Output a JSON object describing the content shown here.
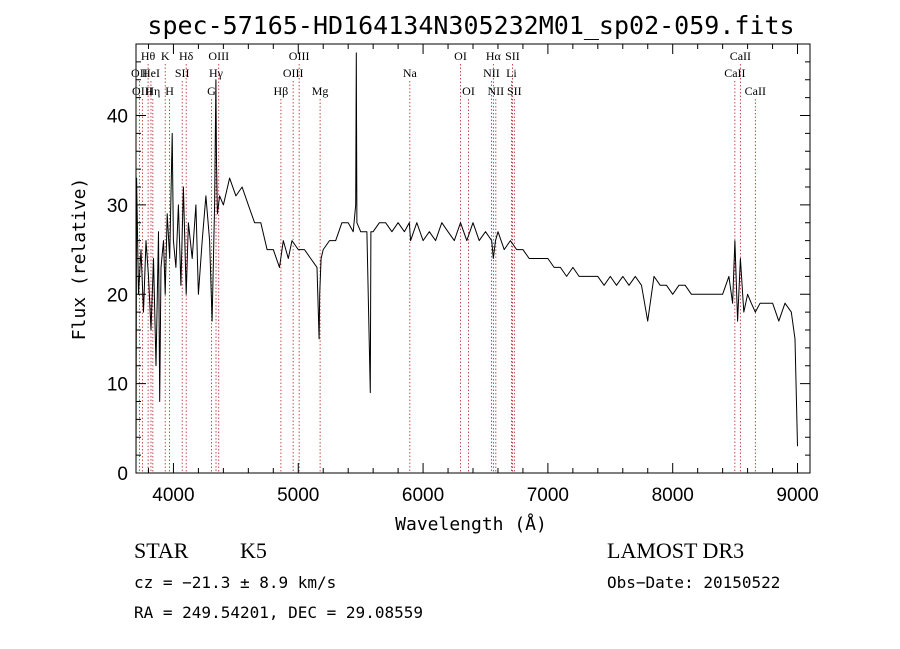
{
  "chart_data": {
    "type": "line",
    "title": "spec-57165-HD164134N305232M01_sp02-059.fits",
    "xlabel": "Wavelength (Å)",
    "ylabel": "Flux (relative)",
    "xlim": [
      3700,
      9100
    ],
    "ylim": [
      0,
      48
    ],
    "x_ticks": [
      4000,
      5000,
      6000,
      7000,
      8000,
      9000
    ],
    "y_ticks": [
      0,
      10,
      20,
      30,
      40
    ],
    "spectrum": {
      "x": [
        3700,
        3705,
        3720,
        3740,
        3760,
        3780,
        3800,
        3820,
        3840,
        3860,
        3880,
        3890,
        3900,
        3920,
        3934,
        3950,
        3970,
        3990,
        4000,
        4020,
        4040,
        4060,
        4080,
        4102,
        4120,
        4150,
        4180,
        4200,
        4230,
        4260,
        4290,
        4310,
        4330,
        4340,
        4345,
        4352,
        4370,
        4400,
        4450,
        4500,
        4550,
        4600,
        4650,
        4700,
        4750,
        4800,
        4850,
        4880,
        4920,
        4950,
        5000,
        5050,
        5100,
        5150,
        5167,
        5172,
        5183,
        5200,
        5250,
        5300,
        5350,
        5400,
        5440,
        5460,
        5465,
        5470,
        5500,
        5550,
        5577,
        5582,
        5600,
        5650,
        5700,
        5750,
        5800,
        5850,
        5890,
        5900,
        5950,
        6000,
        6050,
        6100,
        6150,
        6200,
        6250,
        6300,
        6350,
        6400,
        6450,
        6500,
        6550,
        6563,
        6580,
        6600,
        6650,
        6700,
        6750,
        6800,
        6850,
        6900,
        6950,
        7000,
        7050,
        7100,
        7150,
        7200,
        7250,
        7300,
        7350,
        7400,
        7450,
        7500,
        7550,
        7600,
        7650,
        7700,
        7750,
        7800,
        7850,
        7900,
        7950,
        8000,
        8050,
        8100,
        8150,
        8200,
        8250,
        8300,
        8350,
        8400,
        8450,
        8480,
        8498,
        8520,
        8542,
        8570,
        8600,
        8630,
        8662,
        8700,
        8750,
        8800,
        8850,
        8900,
        8950,
        8980,
        9000
      ],
      "y": [
        0,
        33,
        20,
        25,
        18,
        26,
        22,
        16,
        24,
        12,
        27,
        8,
        23,
        26,
        20,
        29,
        24,
        38,
        26,
        23,
        30,
        21,
        32,
        20,
        28,
        24,
        30,
        20,
        26,
        31,
        26,
        17,
        30,
        44,
        35,
        29,
        31,
        30,
        33,
        31,
        32,
        30,
        28,
        28,
        25,
        25,
        23,
        26,
        24,
        26,
        25,
        25,
        24,
        23,
        15,
        20,
        24,
        25,
        26,
        26,
        28,
        28,
        27,
        30,
        47,
        28,
        27,
        27,
        9,
        27,
        27,
        28,
        28,
        27,
        28,
        27,
        28,
        26,
        28,
        26,
        27,
        26,
        28,
        27,
        26,
        28,
        26,
        28,
        26,
        27,
        26,
        24,
        26,
        27,
        25,
        26,
        25,
        25,
        24,
        24,
        24,
        24,
        23,
        23,
        22,
        23,
        22,
        22,
        22,
        22,
        21,
        22,
        21,
        22,
        21,
        22,
        21,
        17,
        22,
        21,
        21,
        20,
        21,
        21,
        20,
        20,
        20,
        20,
        20,
        20,
        22,
        19,
        26,
        17,
        24,
        18,
        20,
        19,
        18,
        19,
        19,
        19,
        17,
        19,
        18,
        15,
        3
      ]
    },
    "spectral_lines": [
      {
        "name": "Hθ",
        "wavelength": 3797,
        "row": 0
      },
      {
        "name": "OII",
        "wavelength": 3727,
        "row": 1
      },
      {
        "name": "OIII",
        "wavelength": 3751,
        "row": 2
      },
      {
        "name": "HeI",
        "wavelength": 3820,
        "row": 1
      },
      {
        "name": "Hη",
        "wavelength": 3835,
        "row": 2
      },
      {
        "name": "K",
        "wavelength": 3934,
        "row": 0
      },
      {
        "name": "H",
        "wavelength": 3969,
        "row": 2
      },
      {
        "name": "SII",
        "wavelength": 4070,
        "row": 1
      },
      {
        "name": "Hδ",
        "wavelength": 4102,
        "row": 0
      },
      {
        "name": "Hγ",
        "wavelength": 4341,
        "row": 1
      },
      {
        "name": "G",
        "wavelength": 4305,
        "row": 2
      },
      {
        "name": "OIII",
        "wavelength": 4363,
        "row": 0
      },
      {
        "name": "Hβ",
        "wavelength": 4861,
        "row": 2
      },
      {
        "name": "OIII",
        "wavelength": 4959,
        "row": 1
      },
      {
        "name": "OIII",
        "wavelength": 5007,
        "row": 0
      },
      {
        "name": "Mg",
        "wavelength": 5175,
        "row": 2
      },
      {
        "name": "Na",
        "wavelength": 5894,
        "row": 1
      },
      {
        "name": "OI",
        "wavelength": 6300,
        "row": 0
      },
      {
        "name": "OI",
        "wavelength": 6364,
        "row": 2
      },
      {
        "name": "NII",
        "wavelength": 6548,
        "row": 1
      },
      {
        "name": "Hα",
        "wavelength": 6563,
        "row": 0
      },
      {
        "name": "NII",
        "wavelength": 6583,
        "row": 2
      },
      {
        "name": "Li",
        "wavelength": 6708,
        "row": 1
      },
      {
        "name": "SII",
        "wavelength": 6716,
        "row": 0
      },
      {
        "name": "SII",
        "wavelength": 6731,
        "row": 2
      },
      {
        "name": "CaII",
        "wavelength": 8498,
        "row": 1
      },
      {
        "name": "CaII",
        "wavelength": 8542,
        "row": 0
      },
      {
        "name": "CaII",
        "wavelength": 8662,
        "row": 2
      }
    ],
    "grid": false
  },
  "info": {
    "star_class": "STAR",
    "subclass": "K5",
    "survey": "LAMOST DR3",
    "cz": "cz = −21.3 ± 8.9 km/s",
    "obs_date": "Obs−Date: 20150522",
    "radec": "RA = 249.54201, DEC =  29.08559"
  },
  "colors": {
    "spectrum": "#000000",
    "line_markers": "#b22222",
    "axes": "#000000",
    "background": "#ffffff"
  }
}
